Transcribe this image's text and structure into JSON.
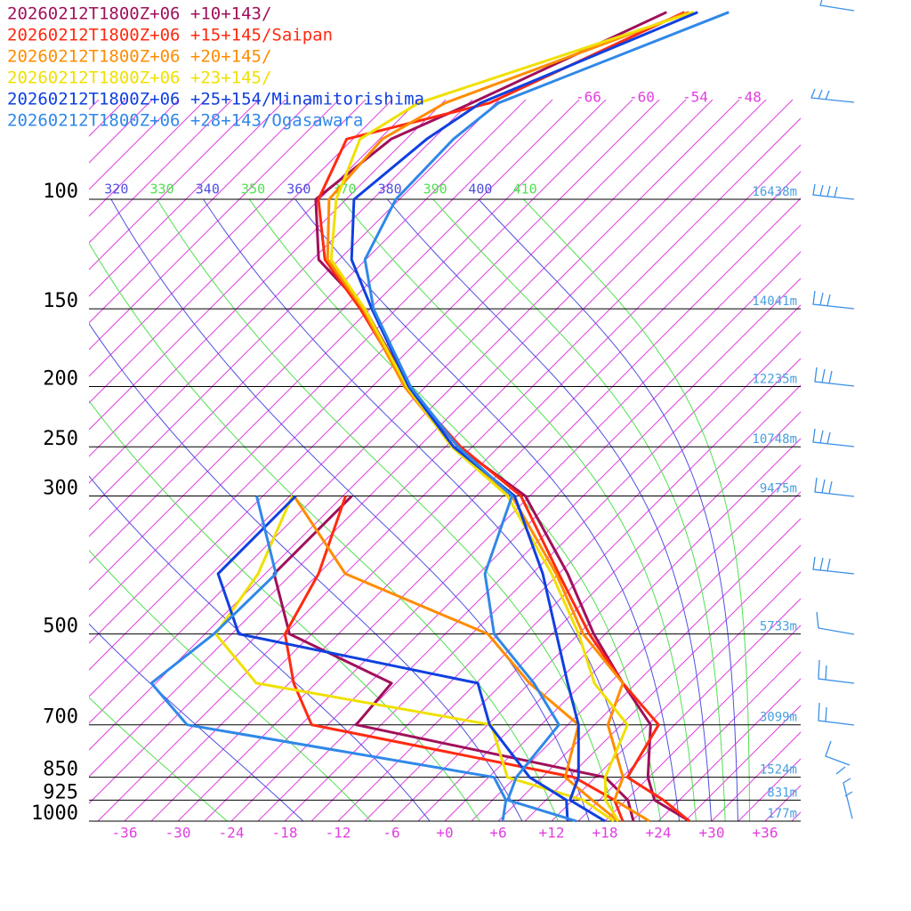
{
  "chart_data": {
    "type": "skewt",
    "levels": [
      1000,
      925,
      850,
      700,
      600,
      500,
      400,
      300,
      250,
      200,
      150,
      125,
      100,
      80,
      70,
      50
    ],
    "xlim": [
      -40,
      40
    ],
    "ylim": [
      1000,
      47.8
    ],
    "xticks": [
      -36,
      -30,
      -24,
      -18,
      -12,
      -6,
      {
        "value": 0,
        "label": "+0"
      },
      {
        "value": 6,
        "label": "+6"
      },
      {
        "value": 12,
        "label": "+12"
      },
      {
        "value": 18,
        "label": "+18"
      },
      {
        "value": 24,
        "label": "+24"
      },
      {
        "value": 30,
        "label": "+30"
      },
      {
        "value": 36,
        "label": "+36"
      }
    ],
    "yticks": [
      100,
      150,
      200,
      250,
      300,
      500,
      700,
      850,
      925,
      1000
    ],
    "height_labels": [
      {
        "value": 16438,
        "label": "16438m"
      },
      {
        "value": 14041,
        "label": "14041m"
      },
      {
        "value": 12235,
        "label": "12235m"
      },
      {
        "value": 10748,
        "label": "10748m"
      },
      {
        "value": 9475,
        "label": "9475m"
      },
      {
        "value": 5733,
        "label": "5733m"
      },
      {
        "value": 3099,
        "label": "3099m"
      },
      {
        "value": 1524,
        "label": "1524m"
      },
      {
        "value": 831,
        "label": "831m"
      },
      {
        "value": 177,
        "label": "177m"
      }
    ],
    "isotherm_labels": [
      -66,
      -60,
      -54,
      -48
    ],
    "isotherm_color": "#e040e0",
    "theta_e": [
      250,
      260,
      270,
      280,
      290,
      300,
      310,
      320,
      330,
      340,
      350,
      360,
      370,
      380,
      390,
      400,
      410
    ],
    "theta_e_colors": [
      "#5050e0",
      "#50e050"
    ],
    "series": [
      {
        "name": "20260212T1800Z+06 +10+143/",
        "color": "#a0105a",
        "temperature": [
          27.5,
          21.2,
          17.9,
          12.3,
          4.5,
          -4.3,
          -14.0,
          -27.5,
          -40.6,
          -52.9,
          -66.6,
          -77.3,
          -84.4,
          -82.7,
          -77.7,
          -66.0
        ],
        "dewpoint": [
          21.2,
          18.2,
          13.1,
          -20.8,
          -21.5,
          -38.5,
          -47.0,
          -47.0,
          null,
          null,
          null,
          null,
          null,
          null,
          null,
          null
        ]
      },
      {
        "name": "20260212T1800Z+06 +15+145/Saipan",
        "color": "#ff2a10",
        "temperature": [
          27.5,
          22.2,
          15.6,
          13.2,
          4.5,
          -4.8,
          -15.0,
          -28.0,
          -40.3,
          -53.1,
          -67.1,
          -76.6,
          -84.1,
          -87.7,
          -75.7,
          -64.0
        ],
        "dewpoint": [
          20.0,
          16.7,
          9.6,
          -25.8,
          -32.5,
          -39.0,
          -42.0,
          -47.7,
          null,
          null,
          null,
          null,
          null,
          null,
          null,
          null
        ]
      },
      {
        "name": "20260212T1800Z+06 +20+145/",
        "color": "#ff8c00",
        "temperature": [
          23.0,
          16.7,
          15.1,
          7.5,
          4.5,
          -5.5,
          -15.3,
          -29.0,
          -41.1,
          -53.4,
          -66.8,
          -76.3,
          -82.9,
          -83.7,
          -80.7,
          -63.5
        ],
        "dewpoint": [
          19.5,
          14.2,
          8.6,
          4.2,
          -6.0,
          -16.2,
          -39.0,
          -53.5,
          null,
          null,
          null,
          null,
          null,
          null,
          null,
          null
        ]
      },
      {
        "name": "20260212T1800Z+06 +23+145/",
        "color": "#f0e000",
        "temperature": [
          19.5,
          15.7,
          13.1,
          9.7,
          1.3,
          -6.0,
          -15.8,
          -29.5,
          -41.3,
          -53.1,
          -66.6,
          -75.9,
          -82.1,
          -86.2,
          -83.7,
          -63.0
        ],
        "dewpoint": [
          19.0,
          13.2,
          2.1,
          -5.6,
          -36.7,
          -46.8,
          -48.8,
          -53.7,
          null,
          null,
          null,
          null,
          null,
          null,
          null,
          null
        ]
      },
      {
        "name": "20260212T1800Z+06 +25+154/Minamitorishima",
        "color": "#1040e0",
        "temperature": [
          18.0,
          11.7,
          10.1,
          4.2,
          -1.7,
          -8.5,
          -16.8,
          -28.7,
          -41.1,
          -52.9,
          -65.8,
          -73.6,
          -80.1,
          -78.7,
          -76.7,
          -62.5
        ],
        "dewpoint": [
          13.8,
          11.3,
          4.6,
          -5.8,
          -11.8,
          -44.2,
          -53.3,
          -53.3,
          null,
          null,
          null,
          null,
          null,
          null,
          null,
          null
        ]
      },
      {
        "name": "20260212T1800Z+06 +28+143/Ogasawara",
        "color": "#3088e8",
        "temperature": [
          14.8,
          4.7,
          3.1,
          2.0,
          -5.5,
          -15.5,
          -23.3,
          -29.0,
          -40.6,
          -52.7,
          -65.6,
          -72.1,
          -75.4,
          -75.7,
          -74.7,
          -59.0
        ],
        "dewpoint": [
          6.5,
          4.5,
          0.6,
          -39.8,
          -48.5,
          -47.0,
          -46.8,
          -57.7,
          null,
          null,
          null,
          null,
          null,
          null,
          null,
          null
        ]
      }
    ]
  }
}
